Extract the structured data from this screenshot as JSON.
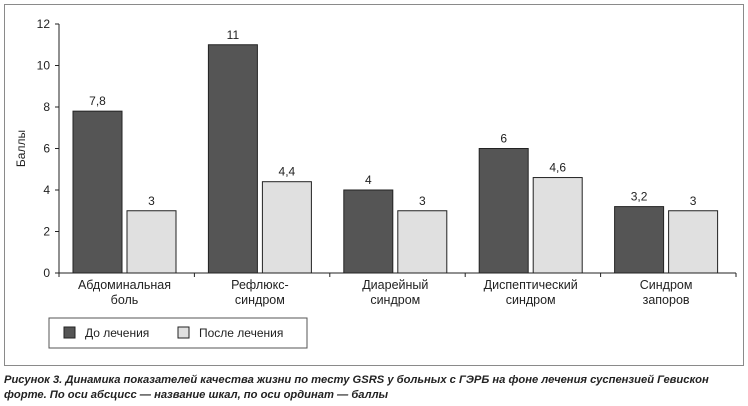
{
  "chart_data": {
    "type": "bar",
    "ylabel": "Баллы",
    "ylim": [
      0,
      12
    ],
    "yticks": [
      0,
      2,
      4,
      6,
      8,
      10,
      12
    ],
    "categories": [
      [
        "Абдоминальная",
        "боль"
      ],
      [
        "Рефлюкс-",
        "синдром"
      ],
      [
        "Диарейный",
        "синдром"
      ],
      [
        "Диспептический",
        "синдром"
      ],
      [
        "Синдром",
        "запоров"
      ]
    ],
    "series": [
      {
        "name": "До лечения",
        "color": "#555555",
        "values": [
          7.8,
          11,
          4,
          6,
          3.2
        ],
        "labels": [
          "7,8",
          "11",
          "4",
          "6",
          "3,2"
        ]
      },
      {
        "name": "После лечения",
        "color": "#e0e0e0",
        "values": [
          3,
          4.4,
          3,
          4.6,
          3
        ],
        "labels": [
          "3",
          "4,4",
          "3",
          "4,6",
          "3"
        ]
      }
    ],
    "legend_position": "bottom-left",
    "grid": false
  },
  "caption": {
    "line1": "Рисунок 3. Динамика показателей качества жизни по тесту GSRS у больных с ГЭРБ на фоне лечения суспензией Гевискон",
    "line2": "форте. По оси абсцисс — название шкал, по оси ординат — баллы"
  }
}
